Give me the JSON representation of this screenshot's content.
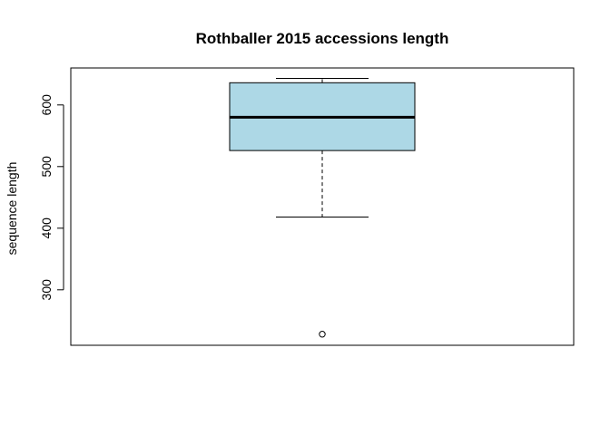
{
  "chart_data": {
    "type": "boxplot",
    "title": "Rothballer 2015 accessions length",
    "xlabel": "",
    "ylabel": "sequence length",
    "ylim": [
      210,
      660
    ],
    "yticks": [
      300,
      400,
      500,
      600
    ],
    "grid": false,
    "series": [
      {
        "box_fill": "#ADD8E6",
        "whisker_low": 418,
        "q1": 526,
        "median": 580,
        "q3": 636,
        "whisker_high": 643,
        "outliers": [
          228
        ]
      }
    ]
  }
}
